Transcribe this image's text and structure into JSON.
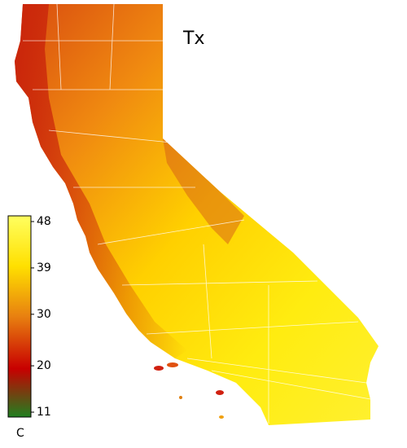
{
  "title": "Tx",
  "colorbar": {
    "unit": "C",
    "range": [
      11,
      48
    ],
    "ticks": [
      11,
      20,
      30,
      39,
      48
    ]
  }
}
